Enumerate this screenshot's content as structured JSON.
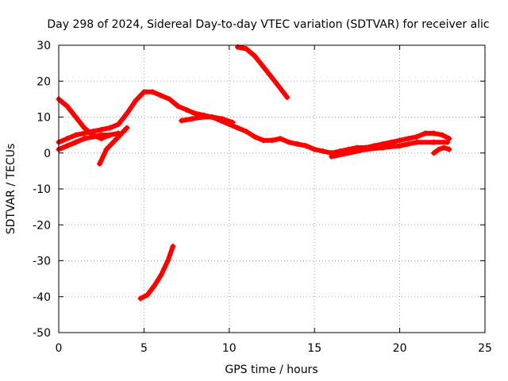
{
  "chart_data": {
    "type": "line",
    "title": "Day 298 of 2024, Sidereal Day-to-day VTEC variation (SDTVAR) for receiver alic",
    "xlabel": "GPS time / hours",
    "ylabel": "SDTVAR / TECUs",
    "xlim": [
      0,
      25
    ],
    "ylim": [
      -50,
      30
    ],
    "xticks": [
      0,
      5,
      10,
      15,
      20,
      25
    ],
    "yticks": [
      -50,
      -40,
      -30,
      -20,
      -10,
      0,
      10,
      20,
      30
    ],
    "grid": true,
    "series_color": "#ff0000",
    "series": [
      {
        "name": "main-trace",
        "x": [
          0.0,
          0.5,
          1.0,
          1.5,
          2.0,
          2.5,
          3.0,
          3.5,
          4.0,
          4.5,
          5.0,
          5.5,
          6.0,
          6.5,
          7.0,
          7.5,
          8.0,
          8.5,
          9.0,
          9.5,
          10.0,
          10.5,
          11.0,
          11.5,
          12.0,
          12.5,
          13.0,
          13.5,
          14.0,
          14.5,
          15.0,
          15.5,
          16.0,
          16.5,
          17.0,
          17.5,
          18.0,
          18.5,
          19.0,
          19.5,
          20.0,
          20.5,
          21.0,
          21.5,
          22.0,
          22.5,
          22.9
        ],
        "y": [
          3,
          4,
          5,
          5.5,
          6,
          6.5,
          7,
          8,
          11,
          14.5,
          17,
          17,
          16,
          15,
          13,
          12,
          11,
          10.5,
          10,
          9,
          8,
          7,
          6,
          4.5,
          3.5,
          3.5,
          4,
          3,
          2.5,
          2,
          1,
          0.5,
          0,
          0.5,
          1,
          1.5,
          1.5,
          2,
          2.5,
          3,
          3.5,
          4,
          4.5,
          5.5,
          5.5,
          5,
          4
        ]
      },
      {
        "name": "early-descending-arc",
        "x": [
          0.0,
          0.5,
          1.0,
          1.5,
          2.0,
          2.5,
          3.0
        ],
        "y": [
          15,
          13,
          10,
          7,
          5,
          4,
          5
        ]
      },
      {
        "name": "early-rising-arc",
        "x": [
          2.4,
          2.8,
          3.2,
          3.6,
          4.0
        ],
        "y": [
          -3,
          1,
          3,
          5,
          7
        ]
      },
      {
        "name": "lower-band",
        "x": [
          0.0,
          0.5,
          1.0,
          1.5,
          2.0,
          2.5,
          3.0,
          3.5
        ],
        "y": [
          1,
          2,
          3,
          4,
          4.5,
          5,
          5,
          5.5
        ]
      },
      {
        "name": "mid-band",
        "x": [
          7.2,
          7.8,
          8.4,
          9.0,
          9.6,
          10.2
        ],
        "y": [
          9,
          9.5,
          10,
          10,
          9.5,
          8.5
        ]
      },
      {
        "name": "late-lower-band",
        "x": [
          16.0,
          17.0,
          18.0,
          19.0,
          20.0,
          21.0,
          22.0,
          22.8
        ],
        "y": [
          -1,
          0,
          1,
          1.5,
          2,
          3,
          3,
          3
        ]
      },
      {
        "name": "late-short-arc",
        "x": [
          22.0,
          22.3,
          22.6,
          22.9
        ],
        "y": [
          0,
          1,
          1.5,
          1
        ]
      },
      {
        "name": "upper-arc",
        "x": [
          10.5,
          11.0,
          11.5,
          12.0,
          12.5,
          13.0,
          13.4
        ],
        "y": [
          29.5,
          29,
          27,
          24,
          21,
          18,
          15.5
        ]
      },
      {
        "name": "negative-arc",
        "x": [
          4.8,
          5.2,
          5.6,
          6.0,
          6.4,
          6.7
        ],
        "y": [
          -40.5,
          -39.5,
          -37,
          -34,
          -30,
          -26
        ]
      }
    ]
  }
}
